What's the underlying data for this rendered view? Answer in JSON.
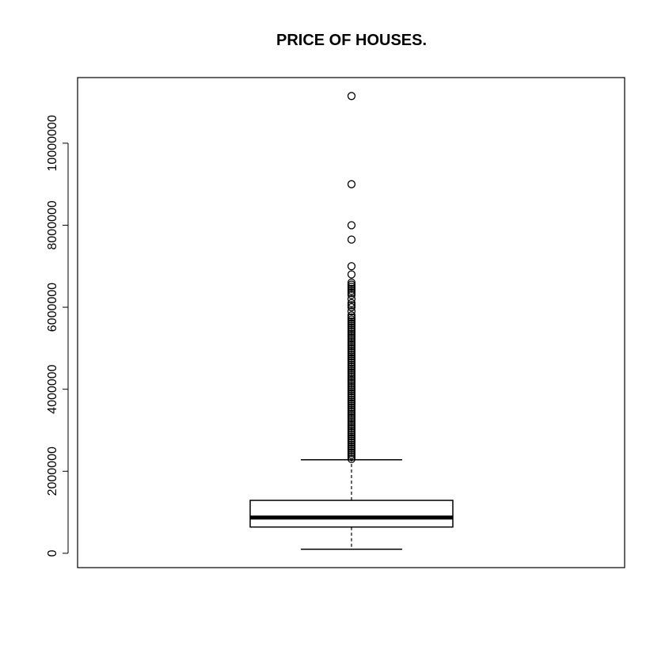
{
  "chart_data": {
    "type": "boxplot",
    "title": "PRICE OF HOUSES.",
    "xlabel": "",
    "ylabel": "",
    "ylim": [
      -350000,
      11600000
    ],
    "y_ticks": [
      0,
      2000000,
      4000000,
      6000000,
      8000000,
      10000000
    ],
    "y_tick_labels": [
      "0",
      "2000000",
      "4000000",
      "6000000",
      "8000000",
      "10000000"
    ],
    "grid": false,
    "box": {
      "whisker_low": 100000,
      "q1": 640000,
      "median": 870000,
      "q3": 1290000,
      "whisker_high": 2280000
    },
    "outliers": [
      11150000,
      9000000,
      8000000,
      7650000,
      7000000,
      6800000,
      6600000,
      6550000,
      6500000,
      6450000,
      6400000,
      6350000,
      6300000,
      6200000,
      6100000,
      6050000,
      6000000,
      5900000,
      5800000,
      5750000,
      5700000,
      5650000,
      5600000,
      5550000,
      5500000,
      5450000,
      5400000,
      5350000,
      5300000,
      5250000,
      5200000,
      5150000,
      5100000,
      5050000,
      5000000,
      4950000,
      4900000,
      4850000,
      4800000,
      4750000,
      4700000,
      4650000,
      4600000,
      4550000,
      4500000,
      4450000,
      4400000,
      4350000,
      4300000,
      4250000,
      4200000,
      4150000,
      4100000,
      4050000,
      4000000,
      3950000,
      3900000,
      3850000,
      3800000,
      3750000,
      3700000,
      3650000,
      3600000,
      3550000,
      3500000,
      3450000,
      3400000,
      3350000,
      3300000,
      3250000,
      3200000,
      3150000,
      3100000,
      3050000,
      3000000,
      2950000,
      2900000,
      2850000,
      2800000,
      2750000,
      2700000,
      2650000,
      2600000,
      2550000,
      2500000,
      2450000,
      2400000,
      2350000,
      2300000
    ]
  }
}
